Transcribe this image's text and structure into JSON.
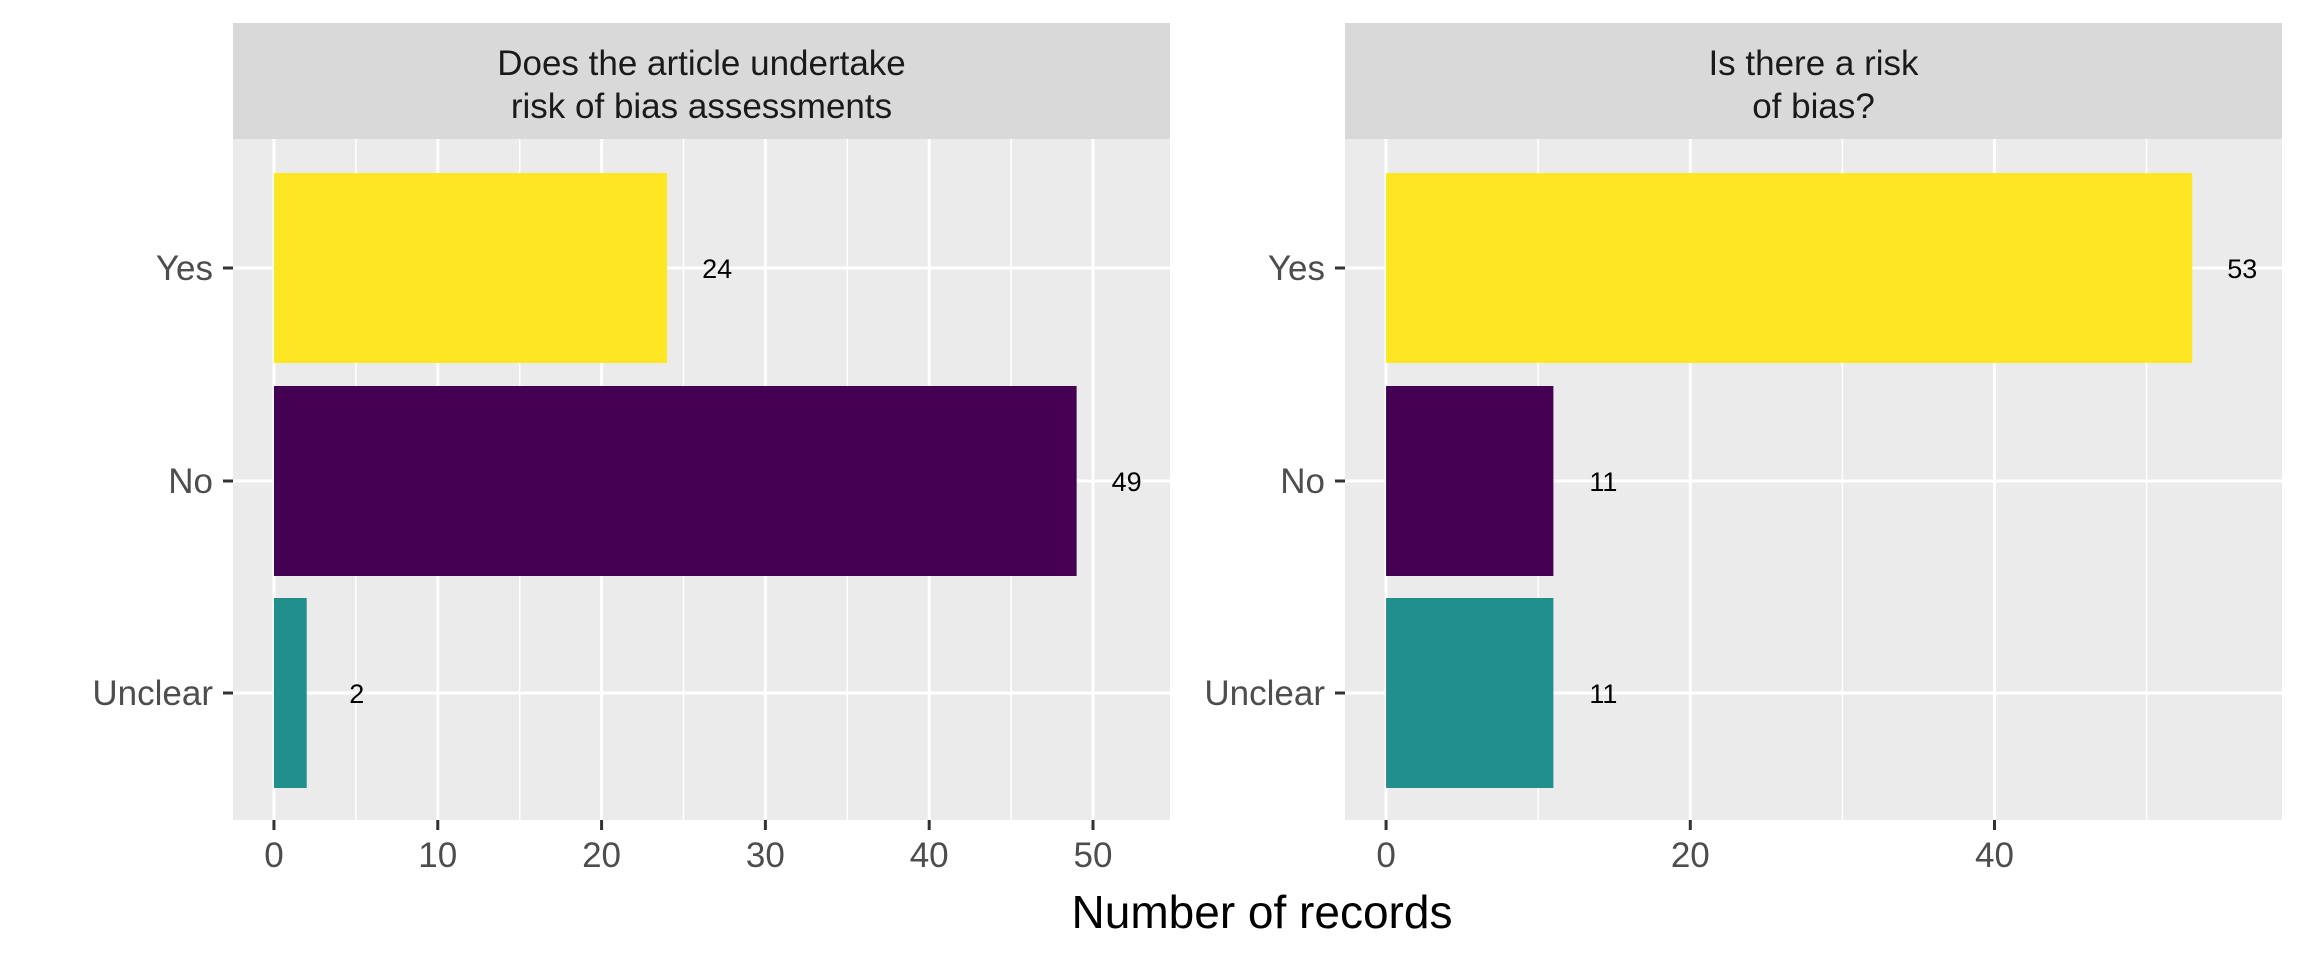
{
  "chart_data": {
    "type": "bar",
    "orientation": "horizontal",
    "xlabel": "Number of records",
    "ylabel": "",
    "grid": true,
    "categories": [
      "Yes",
      "No",
      "Unclear"
    ],
    "colors": {
      "Yes": "#FDE725",
      "No": "#440154",
      "Unclear": "#21908C"
    },
    "panels": [
      {
        "title_lines": [
          "Does the article undertake",
          "risk of bias assessments"
        ],
        "values": [
          24,
          49,
          2
        ],
        "value_labels": [
          "24",
          "49",
          "2"
        ],
        "xlim": [
          -2.5,
          54.7
        ],
        "xticks": [
          0,
          10,
          20,
          30,
          40,
          50
        ],
        "xtick_labels": [
          "0",
          "10",
          "20",
          "30",
          "40",
          "50"
        ]
      },
      {
        "title_lines": [
          "Is there a risk",
          "of bias?"
        ],
        "values": [
          53,
          11,
          11
        ],
        "value_labels": [
          "53",
          "11",
          "11"
        ],
        "xlim": [
          -2.7,
          58.9
        ],
        "xticks": [
          0,
          20,
          40
        ],
        "xtick_labels": [
          "0",
          "20",
          "40"
        ]
      }
    ]
  }
}
